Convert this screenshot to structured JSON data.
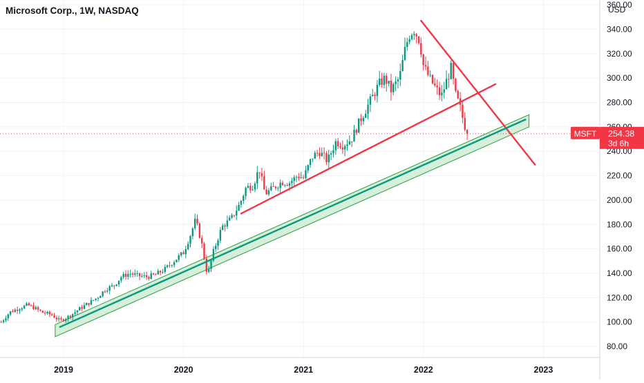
{
  "chart_data": {
    "type": "candlestick",
    "title": "Microsoft Corp., 1W, NASDAQ",
    "currency_label": "USD",
    "symbol": "MSFT",
    "last_price": "254.38",
    "countdown": "3d 6h",
    "x_ticks": [
      "2019",
      "2020",
      "2021",
      "2022",
      "2023"
    ],
    "y_ticks": [
      "80.00",
      "100.00",
      "120.00",
      "140.00",
      "160.00",
      "180.00",
      "200.00",
      "220.00",
      "240.00",
      "260.00",
      "280.00",
      "300.00",
      "320.00",
      "340.00",
      "360.00"
    ],
    "ylim": [
      71,
      364
    ],
    "xlim": [
      2018.47,
      2023.47
    ],
    "price_path": [
      [
        2018.48,
        100
      ],
      [
        2018.55,
        108
      ],
      [
        2018.62,
        111
      ],
      [
        2018.7,
        114
      ],
      [
        2018.75,
        112
      ],
      [
        2018.82,
        108
      ],
      [
        2018.9,
        106
      ],
      [
        2018.97,
        101
      ],
      [
        2019.05,
        105
      ],
      [
        2019.12,
        110
      ],
      [
        2019.2,
        115
      ],
      [
        2019.28,
        120
      ],
      [
        2019.35,
        127
      ],
      [
        2019.42,
        130
      ],
      [
        2019.48,
        137
      ],
      [
        2019.55,
        140
      ],
      [
        2019.62,
        138
      ],
      [
        2019.7,
        137
      ],
      [
        2019.77,
        139
      ],
      [
        2019.84,
        143
      ],
      [
        2019.92,
        150
      ],
      [
        2020.0,
        157
      ],
      [
        2020.06,
        172
      ],
      [
        2020.1,
        184
      ],
      [
        2020.15,
        165
      ],
      [
        2020.2,
        138
      ],
      [
        2020.25,
        158
      ],
      [
        2020.32,
        178
      ],
      [
        2020.4,
        185
      ],
      [
        2020.47,
        197
      ],
      [
        2020.52,
        210
      ],
      [
        2020.58,
        212
      ],
      [
        2020.63,
        226
      ],
      [
        2020.68,
        205
      ],
      [
        2020.75,
        210
      ],
      [
        2020.82,
        215
      ],
      [
        2020.88,
        214
      ],
      [
        2020.95,
        220
      ],
      [
        2021.0,
        218
      ],
      [
        2021.07,
        235
      ],
      [
        2021.13,
        240
      ],
      [
        2021.2,
        232
      ],
      [
        2021.27,
        248
      ],
      [
        2021.33,
        245
      ],
      [
        2021.4,
        250
      ],
      [
        2021.47,
        265
      ],
      [
        2021.55,
        280
      ],
      [
        2021.63,
        295
      ],
      [
        2021.68,
        300
      ],
      [
        2021.73,
        290
      ],
      [
        2021.8,
        300
      ],
      [
        2021.85,
        325
      ],
      [
        2021.88,
        335
      ],
      [
        2021.92,
        340
      ],
      [
        2021.97,
        330
      ],
      [
        2022.0,
        310
      ],
      [
        2022.05,
        300
      ],
      [
        2022.1,
        292
      ],
      [
        2022.15,
        285
      ],
      [
        2022.2,
        300
      ],
      [
        2022.23,
        308
      ],
      [
        2022.27,
        285
      ],
      [
        2022.3,
        278
      ],
      [
        2022.34,
        262
      ],
      [
        2022.37,
        254.38
      ]
    ],
    "trendlines": [
      {
        "color": "#f23645",
        "points": [
          [
            2020.48,
            189
          ],
          [
            2022.6,
            295
          ]
        ]
      },
      {
        "color": "#f23645",
        "points": [
          [
            2021.98,
            347
          ],
          [
            2022.93,
            229
          ]
        ]
      },
      {
        "color": "#089981",
        "points": [
          [
            2018.97,
            96
          ],
          [
            2022.85,
            266
          ]
        ]
      }
    ],
    "channel": {
      "fill": "#d6efd8",
      "stroke": "#2e9e43",
      "lower": [
        [
          2018.93,
          88
        ],
        [
          2022.88,
          260
        ]
      ],
      "upper": [
        [
          2018.93,
          98
        ],
        [
          2022.88,
          270
        ]
      ]
    },
    "colors": {
      "up": "#089981",
      "down": "#f23645",
      "label_bg": "#f23645",
      "grid": "#f0f3fa",
      "axis_text": "#131722"
    }
  }
}
